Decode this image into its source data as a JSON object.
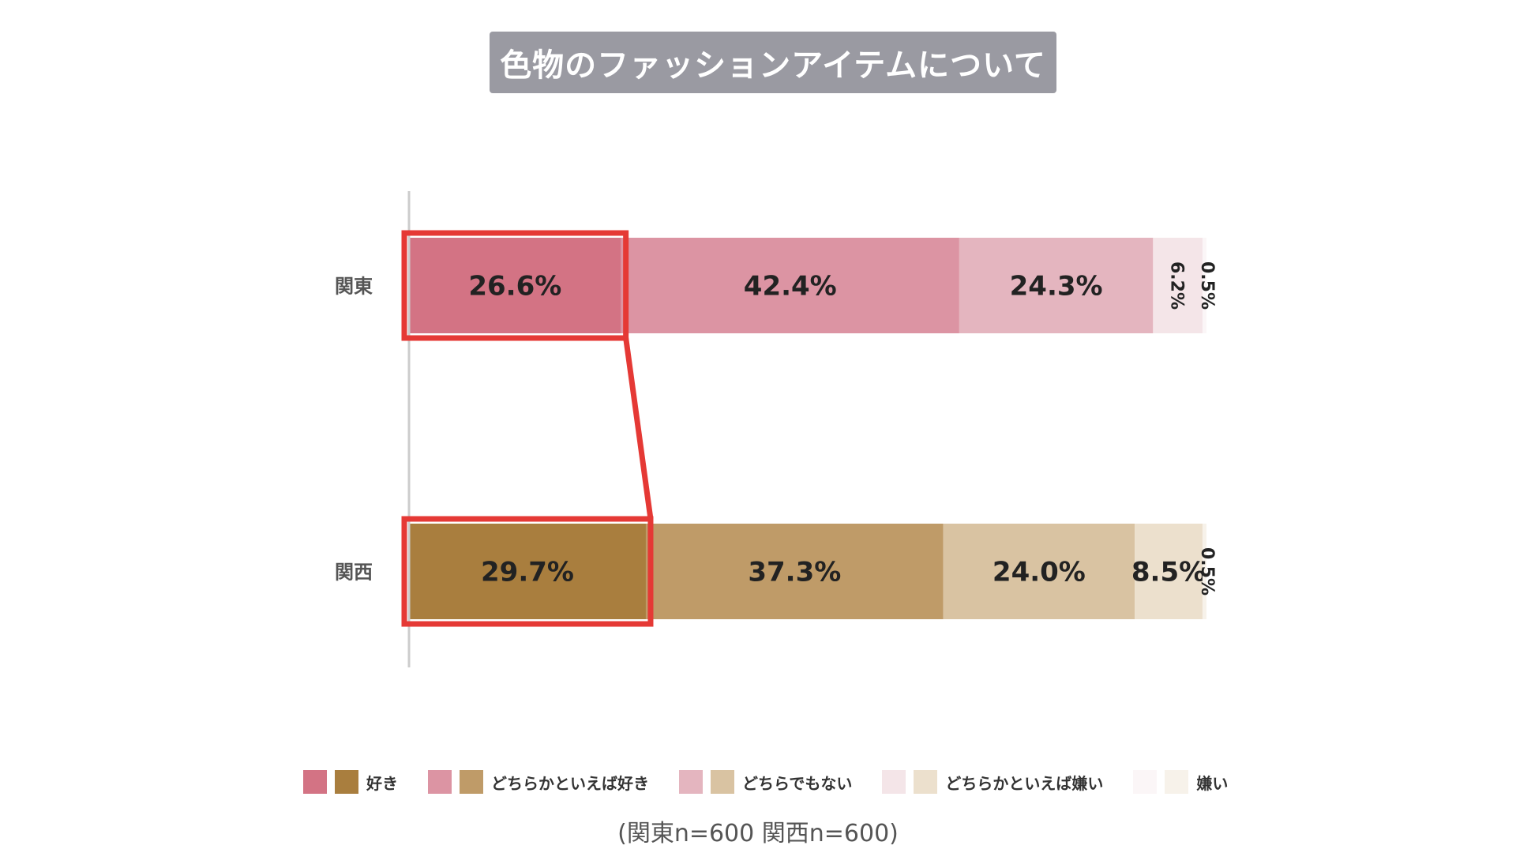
{
  "title": "色物のファッションアイテムについて",
  "footnote": "(関東n=600 関西n=600)",
  "colors": {
    "kanto": [
      "#d37384",
      "#dc94a3",
      "#e4b5bf",
      "#f4e5e8",
      "#fbf6f7"
    ],
    "kansai": [
      "#a97e3e",
      "#bf9b68",
      "#d9c3a2",
      "#ece0cd",
      "#f7f2ea"
    ],
    "highlight": "#e53935",
    "axis": "#cccccc"
  },
  "legend": [
    {
      "label": "好き",
      "kanto_color": "#d37384",
      "kansai_color": "#a97e3e"
    },
    {
      "label": "どちらかといえば好き",
      "kanto_color": "#dc94a3",
      "kansai_color": "#bf9b68"
    },
    {
      "label": "どちらでもない",
      "kanto_color": "#e4b5bf",
      "kansai_color": "#d9c3a2"
    },
    {
      "label": "どちらかといえば嫌い",
      "kanto_color": "#f4e5e8",
      "kansai_color": "#ece0cd"
    },
    {
      "label": "嫌い",
      "kanto_color": "#fbf6f7",
      "kansai_color": "#f7f2ea"
    }
  ],
  "chart_data": {
    "type": "bar",
    "orientation": "horizontal",
    "stacked": true,
    "categories": [
      "関東",
      "関西"
    ],
    "series": [
      {
        "name": "好き",
        "values": [
          26.6,
          29.7
        ],
        "labels": [
          "26.6%",
          "29.7%"
        ]
      },
      {
        "name": "どちらかといえば好き",
        "values": [
          42.4,
          37.3
        ],
        "labels": [
          "42.4%",
          "37.3%"
        ]
      },
      {
        "name": "どちらでもない",
        "values": [
          24.3,
          24.0
        ],
        "labels": [
          "24.3%",
          "24.0%"
        ]
      },
      {
        "name": "どちらかといえば嫌い",
        "values": [
          6.2,
          8.5
        ],
        "labels": [
          "6.2%",
          "8.5%"
        ]
      },
      {
        "name": "嫌い",
        "values": [
          0.5,
          0.5
        ],
        "labels": [
          "0.5%",
          "0.5%"
        ]
      }
    ],
    "xlim": [
      0,
      100
    ],
    "highlight": "好き",
    "legend_position": "bottom"
  }
}
